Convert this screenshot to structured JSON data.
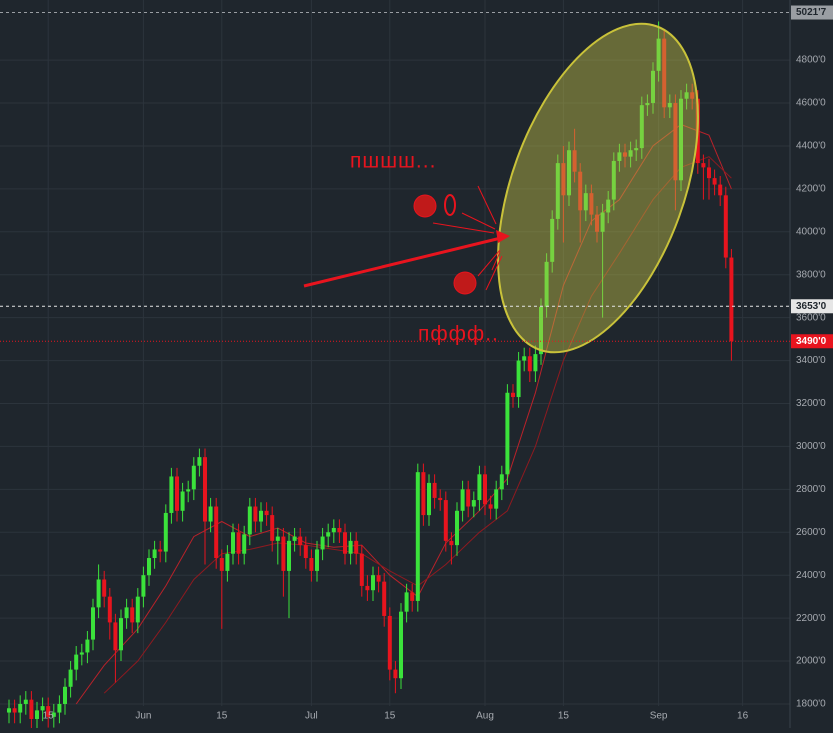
{
  "chart_data": {
    "type": "candlestick",
    "x": [
      "05-08",
      "05-09",
      "05-10",
      "05-11",
      "05-12",
      "05-13",
      "05-14",
      "05-15",
      "05-16",
      "05-17",
      "05-18",
      "05-19",
      "05-20",
      "05-21",
      "05-22",
      "05-23",
      "05-24",
      "05-25",
      "05-26",
      "05-27",
      "05-28",
      "05-29",
      "05-30",
      "05-31",
      "06-01",
      "06-02",
      "06-03",
      "06-04",
      "06-05",
      "06-06",
      "06-07",
      "06-08",
      "06-09",
      "06-10",
      "06-11",
      "06-12",
      "06-13",
      "06-14",
      "06-15",
      "06-16",
      "06-17",
      "06-18",
      "06-19",
      "06-20",
      "06-21",
      "06-22",
      "06-23",
      "06-24",
      "06-25",
      "06-26",
      "06-27",
      "06-28",
      "06-29",
      "06-30",
      "07-01",
      "07-02",
      "07-03",
      "07-04",
      "07-05",
      "07-06",
      "07-07",
      "07-08",
      "07-09",
      "07-10",
      "07-11",
      "07-12",
      "07-13",
      "07-14",
      "07-15",
      "07-16",
      "07-17",
      "07-18",
      "07-19",
      "07-20",
      "07-21",
      "07-22",
      "07-23",
      "07-24",
      "07-25",
      "07-26",
      "07-27",
      "07-28",
      "07-29",
      "07-30",
      "07-31",
      "08-01",
      "08-02",
      "08-03",
      "08-04",
      "08-05",
      "08-06",
      "08-07",
      "08-08",
      "08-09",
      "08-10",
      "08-11",
      "08-12",
      "08-13",
      "08-14",
      "08-15",
      "08-16",
      "08-17",
      "08-18",
      "08-19",
      "08-20",
      "08-21",
      "08-22",
      "08-23",
      "08-24",
      "08-25",
      "08-26",
      "08-27",
      "08-28",
      "08-29",
      "08-30",
      "08-31",
      "09-01",
      "09-02",
      "09-03",
      "09-04",
      "09-05",
      "09-06",
      "09-07",
      "09-08",
      "09-09",
      "09-10",
      "09-11",
      "09-12",
      "09-13",
      "09-14"
    ],
    "open": [
      1760,
      1780,
      1760,
      1800,
      1820,
      1730,
      1770,
      1790,
      1740,
      1760,
      1800,
      1880,
      1960,
      2030,
      2040,
      2100,
      2250,
      2380,
      2300,
      2180,
      2050,
      2200,
      2250,
      2180,
      2300,
      2400,
      2480,
      2520,
      2510,
      2690,
      2860,
      2700,
      2790,
      2800,
      2910,
      2950,
      2650,
      2720,
      2480,
      2420,
      2500,
      2600,
      2500,
      2590,
      2720,
      2650,
      2700,
      2680,
      2560,
      2580,
      2420,
      2560,
      2580,
      2540,
      2480,
      2420,
      2520,
      2580,
      2600,
      2620,
      2600,
      2500,
      2560,
      2500,
      2350,
      2330,
      2400,
      2370,
      2210,
      1960,
      1920,
      2230,
      2320,
      2280,
      2880,
      2680,
      2830,
      2760,
      2750,
      2560,
      2540,
      2700,
      2800,
      2720,
      2750,
      2870,
      2730,
      2710,
      2800,
      2870,
      3250,
      3230,
      3400,
      3420,
      3350,
      3430,
      3650,
      3860,
      4060,
      4320,
      4170,
      4380,
      4280,
      4100,
      4180,
      4080,
      4000,
      4090,
      4150,
      4330,
      4370,
      4350,
      4380,
      4390,
      4590,
      4600,
      4750,
      4900,
      4580,
      4600,
      4240,
      4620,
      4650,
      4620,
      4320,
      4300,
      4250,
      4220,
      4170,
      3880
    ],
    "high": [
      1820,
      1820,
      1840,
      1860,
      1860,
      1810,
      1830,
      1830,
      1800,
      1840,
      1920,
      2000,
      2070,
      2080,
      2140,
      2290,
      2450,
      2420,
      2340,
      2220,
      2240,
      2290,
      2290,
      2340,
      2440,
      2520,
      2560,
      2560,
      2730,
      2900,
      2900,
      2830,
      2840,
      2950,
      2990,
      2990,
      2760,
      2760,
      2520,
      2540,
      2640,
      2640,
      2630,
      2760,
      2760,
      2740,
      2740,
      2720,
      2620,
      2620,
      2600,
      2620,
      2620,
      2580,
      2520,
      2560,
      2620,
      2640,
      2660,
      2660,
      2640,
      2600,
      2600,
      2540,
      2400,
      2440,
      2440,
      2410,
      2250,
      2000,
      2270,
      2360,
      2360,
      2920,
      2920,
      2870,
      2870,
      2800,
      2790,
      2600,
      2740,
      2840,
      2840,
      2790,
      2910,
      2910,
      2770,
      2840,
      2910,
      3290,
      3290,
      3440,
      3460,
      3460,
      3470,
      3690,
      3900,
      4100,
      4360,
      4400,
      4420,
      4480,
      4320,
      4220,
      4220,
      4120,
      4130,
      4190,
      4370,
      4410,
      4410,
      4420,
      4430,
      4630,
      4640,
      4790,
      4980,
      4940,
      4640,
      4640,
      4660,
      4690,
      4690,
      4660,
      4360,
      4340,
      4290,
      4260,
      4210,
      3920
    ],
    "low": [
      1710,
      1710,
      1710,
      1750,
      1680,
      1680,
      1720,
      1690,
      1690,
      1710,
      1750,
      1830,
      1910,
      1980,
      1990,
      2050,
      2200,
      2250,
      2100,
      1900,
      2000,
      2150,
      2130,
      2130,
      2250,
      2350,
      2430,
      2460,
      2460,
      2640,
      2650,
      2650,
      2740,
      2750,
      2860,
      2450,
      2600,
      2430,
      2150,
      2370,
      2450,
      2450,
      2450,
      2540,
      2600,
      2600,
      2630,
      2510,
      2450,
      2300,
      2200,
      2510,
      2490,
      2430,
      2370,
      2370,
      2470,
      2530,
      2550,
      2550,
      2450,
      2450,
      2450,
      2300,
      2280,
      2280,
      2320,
      2160,
      1910,
      1850,
      1870,
      2180,
      2230,
      2230,
      2630,
      2630,
      2710,
      2700,
      2510,
      2450,
      2490,
      2650,
      2670,
      2670,
      2700,
      2680,
      2660,
      2660,
      2750,
      2820,
      3180,
      3180,
      3350,
      3300,
      3300,
      3380,
      3600,
      3810,
      4010,
      3950,
      4120,
      4230,
      3950,
      4050,
      4030,
      3950,
      3600,
      4040,
      4100,
      4280,
      4300,
      4300,
      4330,
      4340,
      4540,
      4550,
      4700,
      4530,
      4530,
      4100,
      4190,
      4570,
      4570,
      4270,
      4150,
      4150,
      4170,
      4120,
      3830,
      3400
    ],
    "close": [
      1780,
      1760,
      1800,
      1820,
      1730,
      1770,
      1790,
      1740,
      1760,
      1800,
      1880,
      1960,
      2030,
      2040,
      2100,
      2250,
      2380,
      2300,
      2180,
      2050,
      2200,
      2250,
      2180,
      2300,
      2400,
      2480,
      2520,
      2510,
      2690,
      2860,
      2700,
      2790,
      2800,
      2910,
      2950,
      2650,
      2720,
      2480,
      2420,
      2500,
      2600,
      2500,
      2590,
      2720,
      2650,
      2700,
      2680,
      2560,
      2580,
      2420,
      2560,
      2580,
      2540,
      2480,
      2420,
      2520,
      2580,
      2600,
      2620,
      2600,
      2500,
      2560,
      2500,
      2350,
      2330,
      2400,
      2370,
      2210,
      1960,
      1920,
      2230,
      2320,
      2280,
      2880,
      2680,
      2830,
      2760,
      2750,
      2560,
      2540,
      2700,
      2800,
      2720,
      2750,
      2870,
      2730,
      2710,
      2800,
      2870,
      3250,
      3230,
      3400,
      3420,
      3350,
      3430,
      3650,
      3860,
      4060,
      4320,
      4170,
      4380,
      4280,
      4100,
      4180,
      4080,
      4000,
      4090,
      4150,
      4330,
      4370,
      4350,
      4380,
      4390,
      4590,
      4600,
      4750,
      4900,
      4580,
      4600,
      4240,
      4620,
      4650,
      4620,
      4320,
      4300,
      4250,
      4220,
      4170,
      3880,
      3490
    ],
    "up_color": "#3be23b",
    "down_color": "#e8141e",
    "overlays": [
      {
        "color": "#b8222a",
        "x": [
          "05-20",
          "05-25",
          "05-31",
          "06-05",
          "06-10",
          "06-15",
          "06-20",
          "06-25",
          "06-30",
          "07-05",
          "07-10",
          "07-15",
          "07-20",
          "07-25",
          "07-31",
          "08-05",
          "08-10",
          "08-15",
          "08-20",
          "08-25",
          "08-31",
          "09-05",
          "09-10",
          "09-14"
        ],
        "values": [
          1800,
          1980,
          2150,
          2350,
          2580,
          2650,
          2580,
          2620,
          2550,
          2530,
          2540,
          2400,
          2300,
          2550,
          2700,
          2850,
          3250,
          3750,
          4050,
          4150,
          4400,
          4500,
          4450,
          4200
        ]
      },
      {
        "color": "#8e1a20",
        "x": [
          "05-25",
          "05-31",
          "06-05",
          "06-10",
          "06-15",
          "06-20",
          "06-25",
          "06-30",
          "07-05",
          "07-10",
          "07-15",
          "07-20",
          "07-25",
          "07-31",
          "08-05",
          "08-10",
          "08-15",
          "08-20",
          "08-25",
          "08-31",
          "09-05",
          "09-10",
          "09-14"
        ],
        "values": [
          1850,
          2000,
          2180,
          2380,
          2500,
          2520,
          2550,
          2540,
          2520,
          2500,
          2420,
          2350,
          2450,
          2600,
          2700,
          3000,
          3400,
          3700,
          3900,
          4150,
          4300,
          4350,
          4250
        ]
      }
    ],
    "ylim": [
      1688,
      5080
    ],
    "yticks": [
      {
        "value": 1800,
        "label": "1800'0"
      },
      {
        "value": 2000,
        "label": "2000'0"
      },
      {
        "value": 2200,
        "label": "2200'0"
      },
      {
        "value": 2400,
        "label": "2400'0"
      },
      {
        "value": 2600,
        "label": "2600'0"
      },
      {
        "value": 2800,
        "label": "2800'0"
      },
      {
        "value": 3000,
        "label": "3000'0"
      },
      {
        "value": 3200,
        "label": "3200'0"
      },
      {
        "value": 3400,
        "label": "3400'0"
      },
      {
        "value": 3600,
        "label": "3600'0"
      },
      {
        "value": 3800,
        "label": "3800'0"
      },
      {
        "value": 4000,
        "label": "4000'0"
      },
      {
        "value": 4200,
        "label": "4200'0"
      },
      {
        "value": 4400,
        "label": "4400'0"
      },
      {
        "value": 4600,
        "label": "4600'0"
      },
      {
        "value": 4800,
        "label": "4800'0"
      }
    ],
    "xticks": [
      {
        "value": "05-15",
        "label": "15"
      },
      {
        "value": "06-01",
        "label": "Jun"
      },
      {
        "value": "06-15",
        "label": "15"
      },
      {
        "value": "07-01",
        "label": "Jul"
      },
      {
        "value": "07-15",
        "label": "15"
      },
      {
        "value": "08-01",
        "label": "Aug"
      },
      {
        "value": "08-15",
        "label": "15"
      },
      {
        "value": "09-01",
        "label": "Sep"
      },
      {
        "value": "09-16",
        "label": "16"
      }
    ],
    "grid": true,
    "price_lines": [
      {
        "value": 5021.7,
        "label": "5021'7",
        "color": "#9a9ea3",
        "style": "dashed"
      },
      {
        "value": 3653,
        "label": "3653'0",
        "color": "#e6e6e6",
        "style": "dashed"
      },
      {
        "value": 3490,
        "label": "3490'0",
        "color": "#e8141e",
        "style": "dotted"
      }
    ],
    "annotations": [
      "пшшш...",
      "пффф.."
    ]
  }
}
